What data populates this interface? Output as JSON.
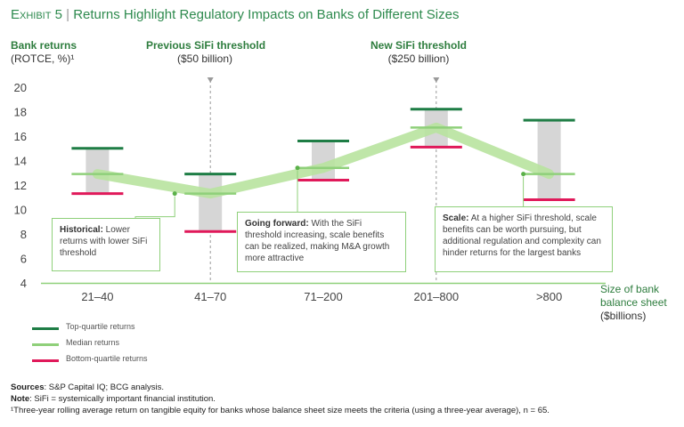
{
  "header": {
    "exhibit": "Exhibit 5",
    "separator": "|",
    "title": "Returns Highlight Regulatory Impacts on Banks of Different Sizes"
  },
  "y_axis_header": {
    "line1": "Bank returns",
    "line2": "(ROTCE, %)¹"
  },
  "thresholds": [
    {
      "title": "Previous SiFi threshold",
      "subtitle": "($50 billion)",
      "category": "41–70"
    },
    {
      "title": "New SiFi threshold",
      "subtitle": "($250 billion)",
      "category": "201–800"
    }
  ],
  "x_axis_header": {
    "line1": "Size of bank",
    "line2": "balance sheet",
    "line3": "($billions)"
  },
  "annotations": [
    {
      "bold": "Historical:",
      "text": " Lower returns with lower SiFi threshold",
      "category": "41–70"
    },
    {
      "bold": "Going forward:",
      "text": " With the SiFi threshold increasing, scale benefits can be realized, making M&A growth more attractive",
      "category": "71–200"
    },
    {
      "bold": "Scale:",
      "text": " At a higher SiFi threshold, scale benefits can be worth pursuing, but additional regulation and complexity can hinder returns for the largest banks",
      "category": ">800"
    }
  ],
  "legend": [
    {
      "label": "Top-quartile returns",
      "color": "#1e7d45"
    },
    {
      "label": "Median returns",
      "color": "#8fd07a"
    },
    {
      "label": "Bottom-quartile returns",
      "color": "#e0195a"
    }
  ],
  "footnotes": {
    "sources_label": "Sources",
    "sources_text": ": S&P Capital IQ; BCG analysis.",
    "note_label": "Note",
    "note_text": ": SiFi = systemically important financial institution.",
    "footnote1": "¹Three-year rolling average return on tangible equity for banks whose balance sheet size meets the criteria (using a three-year average), n = 65."
  },
  "chart_data": {
    "type": "box-range",
    "categories": [
      "21–40",
      "41–70",
      "71–200",
      "201–800",
      ">800"
    ],
    "series": [
      {
        "name": "Top-quartile returns",
        "values": [
          15.0,
          12.9,
          15.6,
          18.2,
          17.3
        ]
      },
      {
        "name": "Median returns",
        "values": [
          12.9,
          11.3,
          13.4,
          16.7,
          12.9
        ]
      },
      {
        "name": "Bottom-quartile returns",
        "values": [
          11.3,
          8.2,
          12.4,
          15.1,
          10.8
        ]
      }
    ],
    "yticks": [
      4,
      6,
      8,
      10,
      12,
      14,
      16,
      18,
      20
    ],
    "ylim": [
      4,
      20
    ],
    "colors": {
      "top": "#1e7d45",
      "median": "#8fd07a",
      "bottom": "#e0195a",
      "range": "#d6d6d6",
      "trend": "#b8e39f"
    }
  }
}
